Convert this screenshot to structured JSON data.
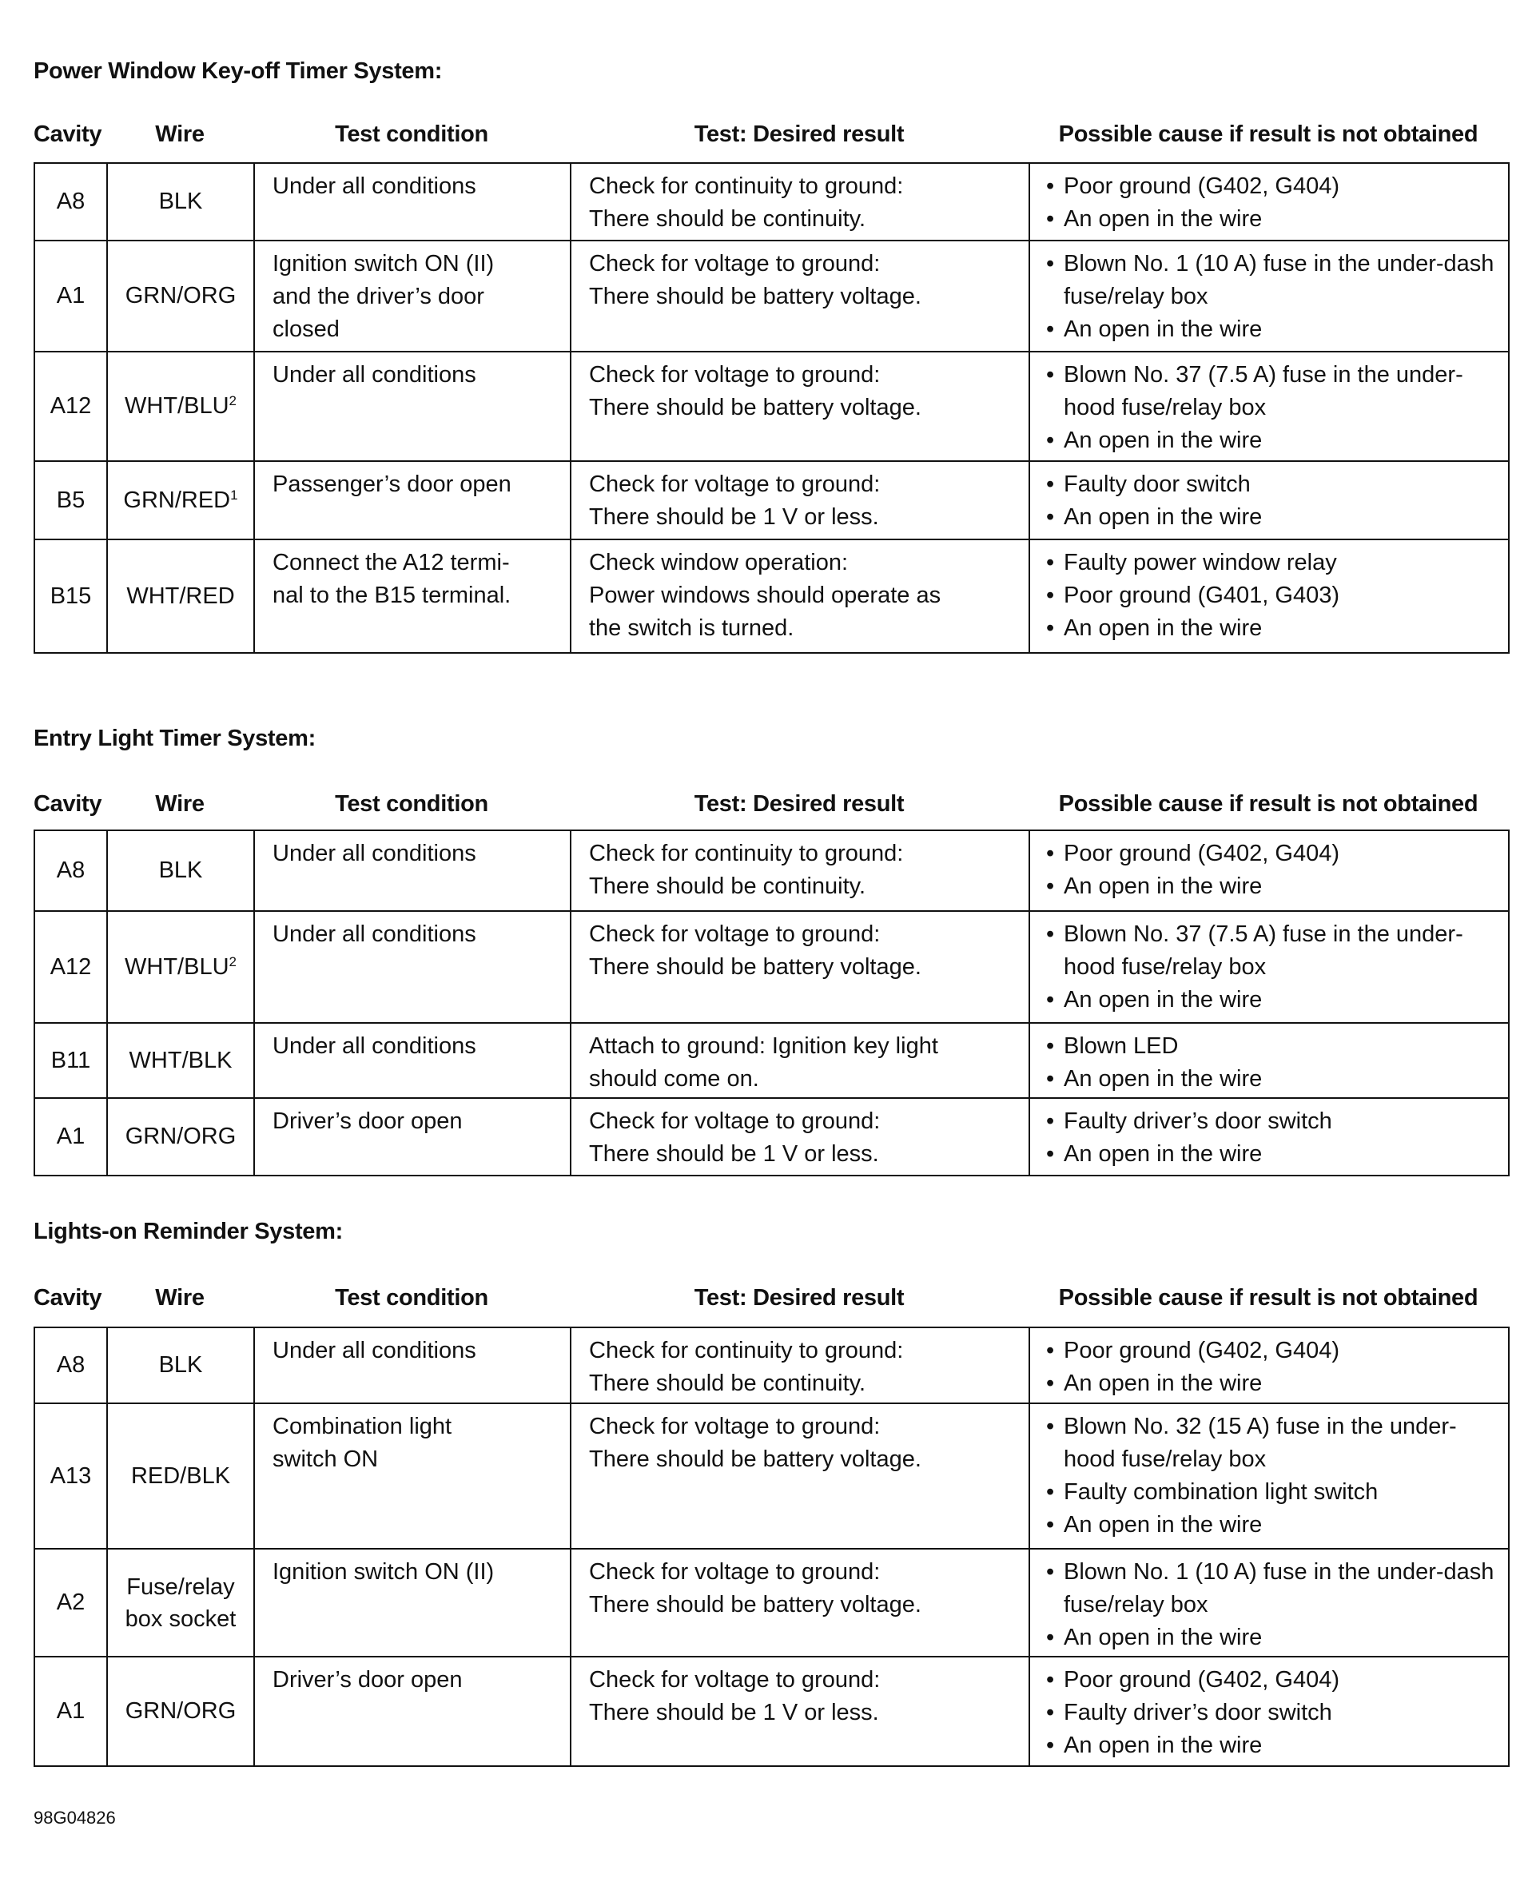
{
  "headers": [
    "Cavity",
    "Wire",
    "Test condition",
    "Test: Desired result",
    "Possible cause if result is not obtained"
  ],
  "sections": [
    {
      "title": "Power Window Key-off Timer System:",
      "rows": [
        {
          "cavity": "A8",
          "wire": "BLK",
          "sup": "",
          "condition": "Under all conditions",
          "result": "Check for continuity to ground:\nThere should be continuity.",
          "causes": [
            "Poor ground (G402, G404)",
            "An open in the wire"
          ]
        },
        {
          "cavity": "A1",
          "wire": "GRN/ORG",
          "sup": "",
          "condition": "Ignition switch ON (II)\nand the driver’s door\nclosed",
          "result": "Check for voltage to ground:\nThere should be battery voltage.",
          "causes": [
            "Blown No. 1 (10 A) fuse in the under-dash fuse/relay box",
            "An open in the wire"
          ]
        },
        {
          "cavity": "A12",
          "wire": "WHT/BLU",
          "sup": "2",
          "condition": "Under all conditions",
          "result": "Check for voltage to ground:\nThere should be battery voltage.",
          "causes": [
            "Blown No. 37 (7.5 A) fuse in the under-hood fuse/relay box",
            "An open in the wire"
          ]
        },
        {
          "cavity": "B5",
          "wire": "GRN/RED",
          "sup": "1",
          "condition": "Passenger’s door open",
          "result": "Check for voltage to ground:\nThere should be 1 V or less.",
          "causes": [
            "Faulty door switch",
            "An open in the wire"
          ]
        },
        {
          "cavity": "B15",
          "wire": "WHT/RED",
          "sup": "",
          "condition": "Connect the A12 termi-\nnal to the B15 terminal.",
          "result": "Check window operation:\nPower windows should operate as\nthe switch is turned.",
          "causes": [
            "Faulty power window relay",
            "Poor ground (G401, G403)",
            "An open in the wire"
          ]
        }
      ]
    },
    {
      "title": "Entry Light Timer System:",
      "rows": [
        {
          "cavity": "A8",
          "wire": "BLK",
          "sup": "",
          "condition": "Under all conditions",
          "result": "Check for continuity to ground:\nThere should be continuity.",
          "causes": [
            "Poor ground (G402, G404)",
            "An open in the wire"
          ]
        },
        {
          "cavity": "A12",
          "wire": "WHT/BLU",
          "sup": "2",
          "condition": "Under all conditions",
          "result": "Check for voltage to ground:\nThere should be battery voltage.",
          "causes": [
            "Blown No. 37 (7.5 A) fuse in the under-hood fuse/relay box",
            "An open in the wire"
          ]
        },
        {
          "cavity": "B11",
          "wire": "WHT/BLK",
          "sup": "",
          "condition": "Under all conditions",
          "result": "Attach to ground: Ignition key light\nshould come on.",
          "causes": [
            "Blown LED",
            "An open in the wire"
          ]
        },
        {
          "cavity": "A1",
          "wire": "GRN/ORG",
          "sup": "",
          "condition": "Driver’s door open",
          "result": "Check for voltage to ground:\nThere should be 1 V or less.",
          "causes": [
            "Faulty driver’s door switch",
            "An open in the wire"
          ]
        }
      ]
    },
    {
      "title": "Lights-on Reminder System:",
      "rows": [
        {
          "cavity": "A8",
          "wire": "BLK",
          "sup": "",
          "condition": "Under all conditions",
          "result": "Check for continuity to ground:\nThere should be continuity.",
          "causes": [
            "Poor ground (G402, G404)",
            "An open in the wire"
          ]
        },
        {
          "cavity": "A13",
          "wire": "RED/BLK",
          "sup": "",
          "condition": "Combination light\nswitch ON",
          "result": "Check for voltage to ground:\nThere should be battery voltage.",
          "causes": [
            "Blown No. 32 (15 A) fuse in the under-hood fuse/relay box",
            "Faulty combination light switch",
            "An open in the wire"
          ]
        },
        {
          "cavity": "A2",
          "wire": "Fuse/relay box socket",
          "sup": "",
          "condition": "Ignition switch ON (II)",
          "result": "Check for voltage to ground:\nThere should be battery voltage.",
          "causes": [
            "Blown No. 1 (10 A) fuse in the under-dash fuse/relay box",
            "An open in the wire"
          ]
        },
        {
          "cavity": "A1",
          "wire": "GRN/ORG",
          "sup": "",
          "condition": "Driver’s door open",
          "result": "Check for voltage to ground:\nThere should be 1 V or less.",
          "causes": [
            "Poor ground (G402, G404)",
            "Faulty driver’s door switch",
            "An open in the wire"
          ]
        }
      ]
    }
  ],
  "footer": "98G04826"
}
